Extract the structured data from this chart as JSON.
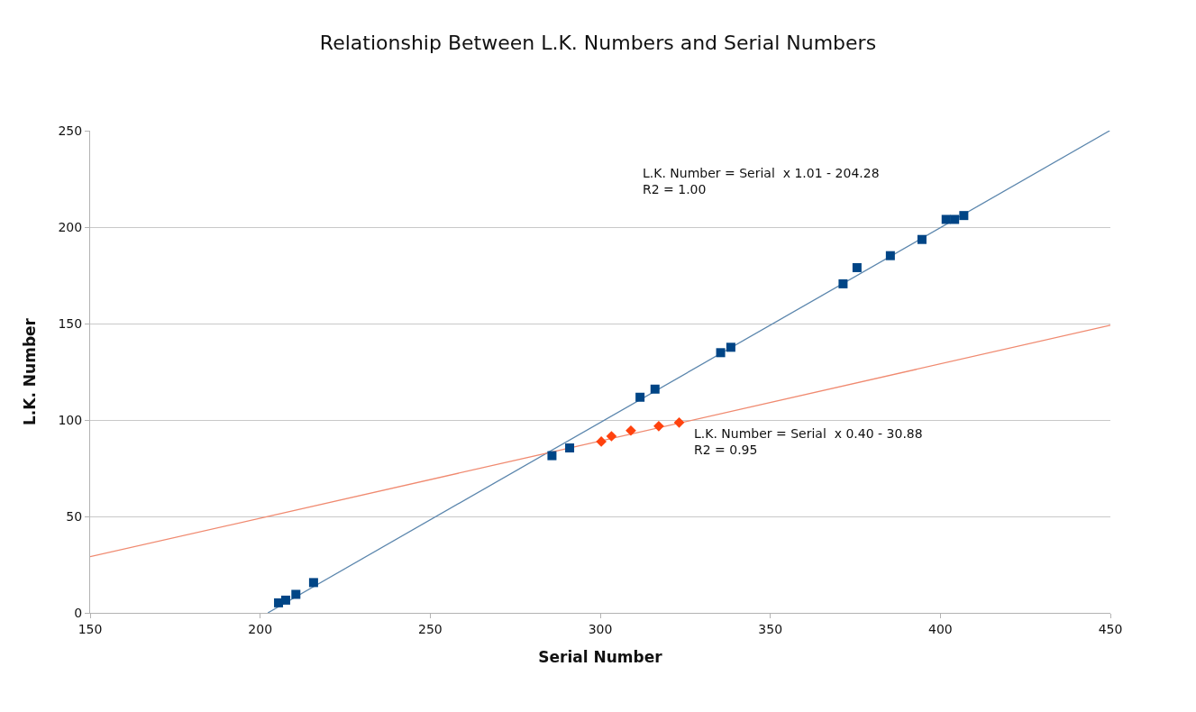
{
  "chart_data": {
    "type": "scatter",
    "title": "Relationship Between L.K. Numbers and Serial Numbers",
    "xlabel": "Serial Number",
    "ylabel": "L.K. Number",
    "xlim": [
      150,
      450
    ],
    "xticks": [
      150,
      200,
      250,
      300,
      350,
      400,
      450
    ],
    "ylim": [
      0,
      250
    ],
    "yticks": [
      0,
      50,
      100,
      150,
      200,
      250
    ],
    "grid": "y",
    "series": [
      {
        "type": "line",
        "color": "#5b86ad",
        "marker": "none",
        "x": [
          202.26,
          449.8
        ],
        "values": [
          0.0,
          250.0
        ]
      },
      {
        "type": "line",
        "color": "#f08a70",
        "marker": "none",
        "x": [
          150,
          450
        ],
        "values": [
          29.1,
          149.1
        ]
      },
      {
        "color": "#004586",
        "marker": "square",
        "x": [
          205.4,
          207.5,
          210.5,
          215.7,
          285.8,
          291,
          311.7,
          316.1,
          335.4,
          338.4,
          371.4,
          375.5,
          385.3,
          394.6,
          401.7,
          404.2,
          406.9
        ],
        "values": [
          5.2,
          6.6,
          9.6,
          15.7,
          81.5,
          85.5,
          111.8,
          116,
          134.9,
          137.7,
          170.6,
          179,
          185.2,
          193.6,
          204,
          204,
          206
        ]
      },
      {
        "color": "#ff420e",
        "marker": "diamond",
        "x": [
          300.3,
          303.3,
          309,
          317.2,
          323.2
        ],
        "values": [
          88.8,
          91.6,
          94.5,
          96.8,
          98.7
        ]
      }
    ],
    "annotations": [
      "L.K. Number = Serial  x 1.01 - 204.28\nR2 = 1.00",
      "L.K. Number = Serial  x 0.40 - 30.88\nR2 = 0.95"
    ]
  }
}
